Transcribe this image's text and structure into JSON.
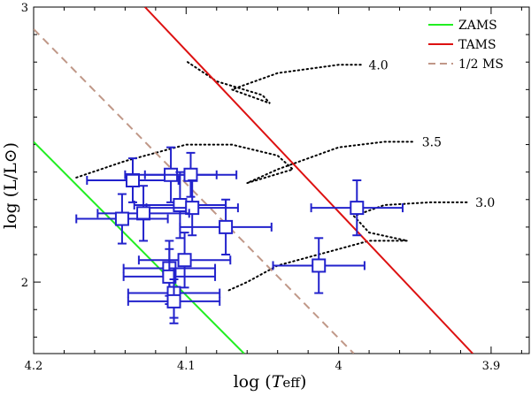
{
  "chart_data": {
    "type": "scatter",
    "title": "",
    "xlabel_prefix": "log (",
    "xlabel_var": "T",
    "xlabel_sub": "eff",
    "xlabel_suffix": ")",
    "ylabel": "log (L/L⊙)",
    "xlim": [
      4.2,
      3.875
    ],
    "ylim": [
      1.74,
      3.0
    ],
    "x_reversed": true,
    "x_ticks": [
      4.2,
      4.1,
      4.0,
      3.9
    ],
    "x_tick_labels": [
      "4.2",
      "4.1",
      "4",
      "3.9"
    ],
    "y_ticks": [
      2.0,
      3.0
    ],
    "y_tick_labels": [
      "2",
      "3"
    ],
    "legend": {
      "placement": "top-right",
      "entries": [
        {
          "label": "ZAMS",
          "color": "#22ee22",
          "style": "solid"
        },
        {
          "label": "TAMS",
          "color": "#dd1111",
          "style": "solid"
        },
        {
          "label": "1/2 MS",
          "color": "#c09888",
          "style": "dashed"
        }
      ]
    },
    "lines": [
      {
        "name": "ZAMS",
        "color": "#22ee22",
        "style": "solid",
        "points": [
          [
            4.2,
            2.51
          ],
          [
            4.062,
            1.74
          ]
        ]
      },
      {
        "name": "TAMS",
        "color": "#dd1111",
        "style": "solid",
        "points": [
          [
            4.127,
            3.0
          ],
          [
            3.912,
            1.74
          ]
        ]
      },
      {
        "name": "1/2 MS",
        "color": "#c09888",
        "style": "dashed",
        "points": [
          [
            4.2,
            2.92
          ],
          [
            3.99,
            1.74
          ]
        ]
      }
    ],
    "tracks": [
      {
        "label": "4.0",
        "points": [
          [
            4.099,
            2.8
          ],
          [
            4.08,
            2.73
          ],
          [
            4.05,
            2.68
          ],
          [
            4.045,
            2.65
          ],
          [
            4.07,
            2.7
          ],
          [
            4.04,
            2.76
          ],
          [
            4.0,
            2.79
          ],
          [
            3.985,
            2.79
          ]
        ]
      },
      {
        "label": "3.5",
        "points": [
          [
            4.172,
            2.38
          ],
          [
            4.14,
            2.44
          ],
          [
            4.1,
            2.5
          ],
          [
            4.07,
            2.5
          ],
          [
            4.04,
            2.46
          ],
          [
            4.03,
            2.41
          ],
          [
            4.06,
            2.36
          ],
          [
            4.04,
            2.41
          ],
          [
            4.0,
            2.49
          ],
          [
            3.97,
            2.51
          ],
          [
            3.95,
            2.51
          ]
        ]
      },
      {
        "label": "3.0",
        "points": [
          [
            4.072,
            1.97
          ],
          [
            4.06,
            2.0
          ],
          [
            4.04,
            2.06
          ],
          [
            4.0,
            2.12
          ],
          [
            3.98,
            2.15
          ],
          [
            3.955,
            2.15
          ],
          [
            3.98,
            2.18
          ],
          [
            3.99,
            2.24
          ],
          [
            3.97,
            2.28
          ],
          [
            3.94,
            2.29
          ],
          [
            3.915,
            2.29
          ]
        ]
      }
    ],
    "points": [
      {
        "x": 4.135,
        "y": 2.37,
        "xerr": 0.03,
        "yerr": 0.08
      },
      {
        "x": 4.11,
        "y": 2.39,
        "xerr": 0.03,
        "yerr": 0.1
      },
      {
        "x": 4.097,
        "y": 2.39,
        "xerr": 0.03,
        "yerr": 0.08
      },
      {
        "x": 4.104,
        "y": 2.28,
        "xerr": 0.03,
        "yerr": 0.12
      },
      {
        "x": 4.096,
        "y": 2.27,
        "xerr": 0.03,
        "yerr": 0.1
      },
      {
        "x": 4.128,
        "y": 2.25,
        "xerr": 0.03,
        "yerr": 0.1
      },
      {
        "x": 4.142,
        "y": 2.23,
        "xerr": 0.03,
        "yerr": 0.09
      },
      {
        "x": 4.074,
        "y": 2.2,
        "xerr": 0.03,
        "yerr": 0.1
      },
      {
        "x": 4.101,
        "y": 2.08,
        "xerr": 0.03,
        "yerr": 0.1
      },
      {
        "x": 4.111,
        "y": 2.05,
        "xerr": 0.03,
        "yerr": 0.1
      },
      {
        "x": 4.111,
        "y": 2.02,
        "xerr": 0.03,
        "yerr": 0.1
      },
      {
        "x": 4.108,
        "y": 1.96,
        "xerr": 0.03,
        "yerr": 0.09
      },
      {
        "x": 4.108,
        "y": 1.93,
        "xerr": 0.03,
        "yerr": 0.08
      },
      {
        "x": 3.988,
        "y": 2.27,
        "xerr": 0.03,
        "yerr": 0.1
      },
      {
        "x": 4.013,
        "y": 2.06,
        "xerr": 0.03,
        "yerr": 0.1
      }
    ]
  }
}
